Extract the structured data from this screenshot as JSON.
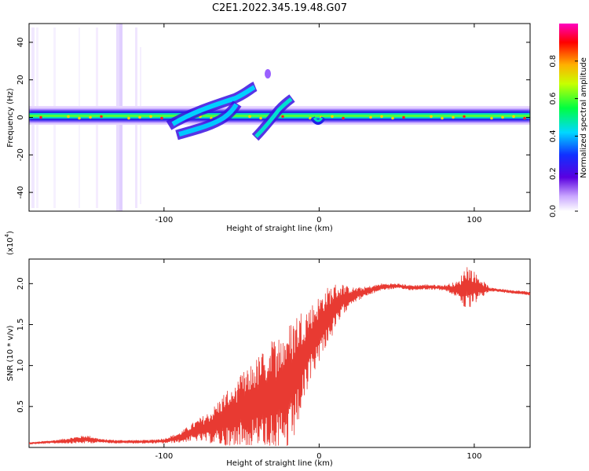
{
  "title": "C2E1.2022.345.19.48.G07",
  "chart_data": [
    {
      "type": "heatmap",
      "xlabel": "Height of straight line (km)",
      "ylabel": "Frequency (Hz)",
      "xlim": [
        -187,
        136
      ],
      "ylim": [
        -50,
        50
      ],
      "xticks": [
        -100,
        0,
        100
      ],
      "xtick_labels": [
        "-100",
        "0",
        "100"
      ],
      "yticks": [
        -40,
        -20,
        0,
        20,
        40
      ],
      "ytick_labels": [
        "-40",
        "-20",
        "0",
        "20",
        "40"
      ],
      "colorbar": {
        "label": "Normalized spectral amplitude",
        "range": [
          0,
          1
        ],
        "ticks": [
          0.0,
          0.2,
          0.4,
          0.6,
          0.8
        ],
        "tick_labels": [
          "0.0",
          "0.2",
          "0.4",
          "0.6",
          "0.8"
        ]
      },
      "features": [
        {
          "name": "carrier-line",
          "x_range": [
            -187,
            136
          ],
          "freq_hz": 0
        },
        {
          "name": "upper-branch",
          "x_points": [
            -88,
            -70,
            -55,
            -45,
            -40
          ],
          "freq_points": [
            -2,
            3,
            6,
            10,
            14
          ]
        },
        {
          "name": "lower-branch",
          "x_points": [
            -90,
            -75,
            -65,
            -58
          ],
          "freq_points": [
            -10,
            -8,
            -5,
            -2
          ]
        },
        {
          "name": "second-branch",
          "x_points": [
            -40,
            -35,
            -30,
            -25,
            -20
          ],
          "freq_points": [
            -10,
            -6,
            -2,
            2,
            6
          ]
        },
        {
          "name": "dip-near-zero",
          "x_range": [
            -3,
            3
          ],
          "freq_hz": -3
        }
      ]
    },
    {
      "type": "line",
      "xlabel": "Height of straight line (km)",
      "ylabel": "SNR (10 * v/v)",
      "yscale_label": "(x10",
      "yscale_exponent": "4",
      "yscale_suffix": ")",
      "xlim": [
        -187,
        136
      ],
      "ylim": [
        0,
        2.3
      ],
      "xticks": [
        -100,
        0,
        100
      ],
      "xtick_labels": [
        "-100",
        "0",
        "100"
      ],
      "yticks": [
        0.5,
        1.0,
        1.5,
        2.0
      ],
      "ytick_labels": [
        "0.5",
        "1.0",
        "1.5",
        "2.0"
      ],
      "color": "#e83a32",
      "series": [
        {
          "name": "SNR",
          "x": [
            -187,
            -170,
            -150,
            -140,
            -130,
            -120,
            -110,
            -100,
            -90,
            -80,
            -70,
            -60,
            -50,
            -40,
            -30,
            -20,
            -15,
            -10,
            -5,
            0,
            5,
            10,
            15,
            20,
            30,
            40,
            50,
            60,
            70,
            80,
            90,
            95,
            100,
            110,
            120,
            136
          ],
          "y": [
            0.05,
            0.07,
            0.1,
            0.08,
            0.07,
            0.07,
            0.07,
            0.08,
            0.12,
            0.2,
            0.25,
            0.35,
            0.45,
            0.55,
            0.62,
            0.7,
            0.9,
            1.1,
            1.3,
            1.45,
            1.6,
            1.7,
            1.8,
            1.85,
            1.9,
            1.96,
            1.97,
            1.95,
            1.96,
            1.95,
            1.93,
            1.95,
            1.95,
            1.93,
            1.91,
            1.88
          ],
          "noise": [
            0.01,
            0.02,
            0.05,
            0.02,
            0.02,
            0.02,
            0.02,
            0.03,
            0.06,
            0.12,
            0.2,
            0.35,
            0.45,
            0.55,
            0.7,
            0.8,
            0.75,
            0.6,
            0.45,
            0.4,
            0.35,
            0.3,
            0.2,
            0.1,
            0.06,
            0.04,
            0.03,
            0.03,
            0.03,
            0.03,
            0.1,
            0.3,
            0.2,
            0.02,
            0.02,
            0.02
          ]
        }
      ]
    }
  ]
}
